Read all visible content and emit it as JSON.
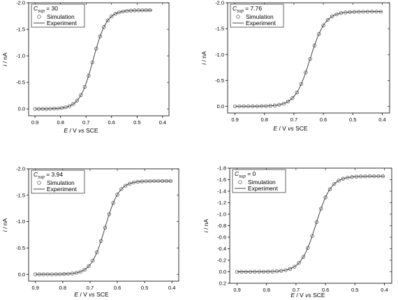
{
  "chart_data": [
    {
      "type": "scatter",
      "xlabel": {
        "italic": "E",
        "plain": " / V ",
        "italic2": "vs",
        "plain2": " SCE"
      },
      "ylabel": {
        "italic": "i",
        "plain": " / nA"
      },
      "xlim": [
        0.925,
        0.375
      ],
      "ylim": [
        0.13,
        -2.0
      ],
      "xticks": [
        "0.9",
        "0.8",
        "0.7",
        "0.6",
        "0.5",
        "0.4"
      ],
      "yticks": [
        "0.0",
        "-0.5",
        "-1.0",
        "-1.5",
        "-2.0"
      ],
      "legend_position": "top-left",
      "legend_param": {
        "symbol": "C",
        "subscript": "sup",
        "value": " = 30"
      },
      "series": [
        {
          "name": "Simulation",
          "style": "open-circle",
          "x": [
            0.9,
            0.885,
            0.87,
            0.855,
            0.84,
            0.825,
            0.81,
            0.795,
            0.78,
            0.765,
            0.75,
            0.735,
            0.72,
            0.705,
            0.69,
            0.675,
            0.66,
            0.645,
            0.63,
            0.615,
            0.6,
            0.585,
            0.57,
            0.555,
            0.54,
            0.525,
            0.51,
            0.495,
            0.48,
            0.465,
            0.45
          ],
          "y_half": -0.93,
          "y_lim": -1.86,
          "e_half": 0.672,
          "slope": 0.0265
        },
        {
          "name": "Experiment",
          "style": "line",
          "x_start": 0.9,
          "x_end": 0.44,
          "y_half": -0.93,
          "y_lim": -1.86,
          "e_half": 0.672,
          "slope": 0.0265
        }
      ]
    },
    {
      "type": "scatter",
      "xlabel": {
        "italic": "E",
        "plain": " / V ",
        "italic2": "vs",
        "plain2": " SCE"
      },
      "ylabel": {
        "italic": "i",
        "plain": " / nA"
      },
      "xlim": [
        0.925,
        0.375
      ],
      "ylim": [
        0.13,
        -2.0
      ],
      "xticks": [
        "0.9",
        "0.8",
        "0.7",
        "0.6",
        "0.5",
        "0.4"
      ],
      "yticks": [
        "0.0",
        "-0.5",
        "-1.0",
        "-1.5",
        "-2.0"
      ],
      "legend_position": "top-left",
      "legend_param": {
        "symbol": "C",
        "subscript": "sup",
        "value": " = 7.76"
      },
      "series": [
        {
          "name": "Simulation",
          "style": "open-circle",
          "x": [
            0.9,
            0.885,
            0.87,
            0.855,
            0.84,
            0.825,
            0.81,
            0.795,
            0.78,
            0.765,
            0.75,
            0.735,
            0.72,
            0.705,
            0.69,
            0.675,
            0.66,
            0.645,
            0.63,
            0.615,
            0.6,
            0.585,
            0.57,
            0.555,
            0.54,
            0.525,
            0.51,
            0.495,
            0.48,
            0.465,
            0.45,
            0.435,
            0.42,
            0.405
          ],
          "y_half": -0.915,
          "y_lim": -1.83,
          "e_half": 0.645,
          "slope": 0.0255
        },
        {
          "name": "Experiment",
          "style": "line",
          "x_start": 0.9,
          "x_end": 0.4,
          "y_half": -0.915,
          "y_lim": -1.83,
          "e_half": 0.645,
          "slope": 0.0255
        }
      ]
    },
    {
      "type": "scatter",
      "xlabel": {
        "italic": "E",
        "plain": " / V ",
        "italic2": "vs",
        "plain2": " SCE"
      },
      "ylabel": {
        "italic": "i",
        "plain": " / nA"
      },
      "xlim": [
        0.925,
        0.375
      ],
      "ylim": [
        0.13,
        -2.0
      ],
      "xticks": [
        "0.9",
        "0.8",
        "0.7",
        "0.6",
        "0.5",
        "0.4"
      ],
      "yticks": [
        "0.0",
        "-0.5",
        "-1.0",
        "-1.5",
        "-2.0"
      ],
      "legend_position": "top-left",
      "legend_param": {
        "symbol": "C",
        "subscript": "sup",
        "value": " = 3.94"
      },
      "series": [
        {
          "name": "Simulation",
          "style": "open-circle",
          "x": [
            0.9,
            0.885,
            0.87,
            0.855,
            0.84,
            0.825,
            0.81,
            0.795,
            0.78,
            0.765,
            0.75,
            0.735,
            0.72,
            0.705,
            0.69,
            0.675,
            0.66,
            0.645,
            0.63,
            0.615,
            0.6,
            0.585,
            0.57,
            0.555,
            0.54,
            0.525,
            0.51,
            0.495,
            0.48,
            0.465,
            0.45,
            0.435,
            0.42,
            0.405
          ],
          "y_half": -0.885,
          "y_lim": -1.77,
          "e_half": 0.645,
          "slope": 0.0255
        },
        {
          "name": "Experiment",
          "style": "line",
          "x_start": 0.9,
          "x_end": 0.4,
          "y_half": -0.885,
          "y_lim": -1.77,
          "e_half": 0.645,
          "slope": 0.0255
        }
      ]
    },
    {
      "type": "scatter",
      "xlabel": {
        "italic": "E",
        "plain": " / V ",
        "italic2": "vs",
        "plain2": " SCE"
      },
      "ylabel": {
        "italic": "i",
        "plain": " / nA"
      },
      "xlim": [
        0.925,
        0.375
      ],
      "ylim": [
        0.2,
        -1.8
      ],
      "xticks": [
        "0.9",
        "0.8",
        "0.7",
        "0.6",
        "0.5",
        "0.4"
      ],
      "yticks": [
        "0.2",
        "0.0",
        "-0.2",
        "-0.4",
        "-0.6",
        "-0.8",
        "-1.0",
        "-1.2",
        "-1.4",
        "-1.6",
        "-1.8"
      ],
      "legend_position": "top-left",
      "legend_param": {
        "symbol": "C",
        "subscript": "sup",
        "value": " = 0"
      },
      "series": [
        {
          "name": "Simulation",
          "style": "open-circle",
          "x": [
            0.9,
            0.885,
            0.87,
            0.855,
            0.84,
            0.825,
            0.81,
            0.795,
            0.78,
            0.765,
            0.75,
            0.735,
            0.72,
            0.705,
            0.69,
            0.675,
            0.66,
            0.645,
            0.63,
            0.615,
            0.6,
            0.585,
            0.57,
            0.555,
            0.54,
            0.525,
            0.51,
            0.495,
            0.48,
            0.465,
            0.45,
            0.435,
            0.42,
            0.405
          ],
          "y_half": -0.83,
          "y_lim": -1.66,
          "e_half": 0.632,
          "slope": 0.0255
        },
        {
          "name": "Experiment",
          "style": "line",
          "x_start": 0.9,
          "x_end": 0.4,
          "y_half": -0.83,
          "y_lim": -1.66,
          "e_half": 0.632,
          "slope": 0.0255
        }
      ]
    }
  ]
}
